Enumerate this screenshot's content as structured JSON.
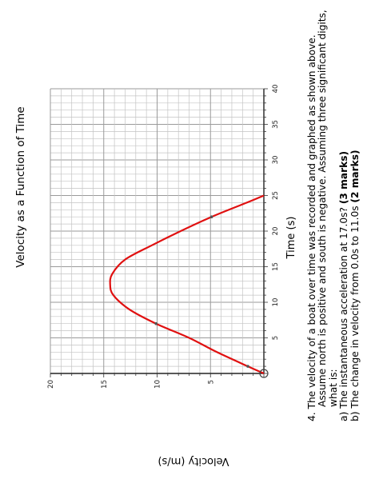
{
  "chart_data": {
    "type": "line",
    "title": "Velocity as a Function of Time",
    "xlabel": "Time (s)",
    "ylabel": "Velocity (m/s)",
    "xlim": [
      0,
      40
    ],
    "ylim": [
      0,
      20
    ],
    "x_ticks": [
      "5",
      "10",
      "15",
      "20",
      "25",
      "30",
      "35",
      "40"
    ],
    "y_ticks": [
      "5",
      "10",
      "15",
      "20"
    ],
    "grid": true,
    "series": [
      {
        "color": "#e01010",
        "x": [
          0,
          1,
          3,
          5,
          7,
          9,
          11,
          12.5,
          14,
          16,
          18,
          20,
          22,
          24,
          25
        ],
        "y": [
          0,
          1.5,
          4.4,
          7.0,
          10.1,
          12.6,
          14.1,
          14.4,
          14.2,
          13.0,
          10.5,
          7.8,
          4.9,
          1.6,
          0
        ]
      }
    ],
    "marked_points": [
      {
        "x": 0,
        "y": 0
      },
      {
        "x": 1,
        "y": 1.5
      },
      {
        "x": 7,
        "y": 10.1
      },
      {
        "x": 22,
        "y": 4.9
      }
    ]
  },
  "question": {
    "number": "4.",
    "lines": [
      "The velocity of a boat over time was recorded and graphed as shown above.",
      "Assume north is positive and south is negative.  Assuming three significant digits,",
      "what is:"
    ],
    "part_a": {
      "text": "a)  The instantaneous acceleration at 17.0s? ",
      "marks": "(3 marks)"
    },
    "part_b": {
      "text": "b)  The change in velocity from 0.0s to 11.0s ",
      "marks": "(2 marks)"
    }
  }
}
